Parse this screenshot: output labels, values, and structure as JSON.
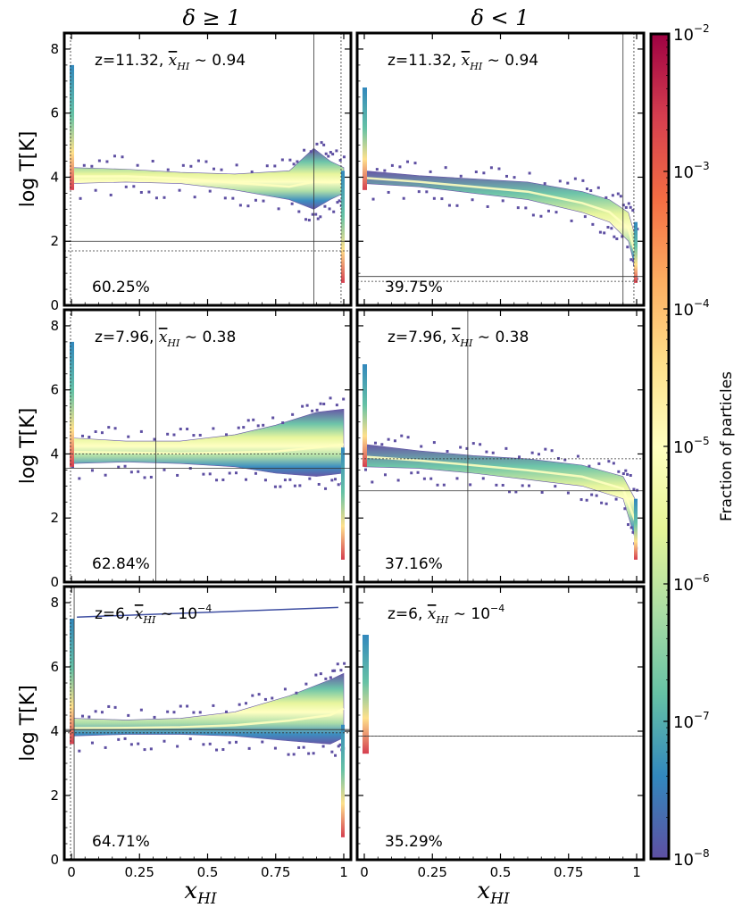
{
  "chart_data": {
    "type": "heatmap",
    "column_titles": [
      "δ ≥ 1",
      "δ < 1"
    ],
    "xlabel": "x_HI",
    "x_subscript": "HI",
    "ylabel": "log T[K]",
    "xlim": [
      0,
      1
    ],
    "ylim": [
      0,
      8.5
    ],
    "x_ticks": [
      0,
      0.25,
      0.5,
      0.75,
      1
    ],
    "x_tick_labels": [
      "0",
      "0.25",
      "0.5",
      "0.75",
      "1"
    ],
    "y_ticks": [
      0,
      2,
      4,
      6,
      8
    ],
    "y_tick_labels": [
      "0",
      "2",
      "4",
      "6",
      "8"
    ],
    "colorbar": {
      "label": "Fraction of particles",
      "scale": "log",
      "min_exp": -8,
      "max_exp": -2,
      "tick_exps": [
        -8,
        -7,
        -6,
        -5,
        -4,
        -3,
        -2
      ],
      "base": "10",
      "colormap": "Spectral_r",
      "colors": [
        "#5e4fa2",
        "#3288bd",
        "#66c2a5",
        "#abdda4",
        "#e6f598",
        "#ffffbf",
        "#fee08b",
        "#fdae61",
        "#f46d43",
        "#d53e4f",
        "#9e0142"
      ]
    },
    "panels": [
      {
        "redshift": "z=11.32",
        "xhi_mean": "0.94",
        "xhi_power": "",
        "percent": "60.25%",
        "vline": 0.89,
        "vline_dotted": 0.99,
        "hline": 2.0,
        "hline_dotted": 1.7,
        "regime": "dense",
        "band": [
          [
            0.0,
            4.3,
            3.8
          ],
          [
            0.2,
            4.25,
            3.85
          ],
          [
            0.4,
            4.15,
            3.8
          ],
          [
            0.6,
            4.1,
            3.6
          ],
          [
            0.8,
            4.2,
            3.3
          ],
          [
            0.89,
            4.9,
            3.0
          ],
          [
            0.95,
            4.5,
            3.3
          ],
          [
            1.0,
            4.3,
            3.5
          ]
        ]
      },
      {
        "redshift": "z=11.32",
        "xhi_mean": "0.94",
        "xhi_power": "",
        "percent": "39.75%",
        "vline": 0.95,
        "vline_dotted": 0.99,
        "hline": 0.9,
        "hline_dotted": 0.75,
        "regime": "underdense",
        "band": [
          [
            0.0,
            4.2,
            3.8
          ],
          [
            0.2,
            4.05,
            3.7
          ],
          [
            0.4,
            3.95,
            3.5
          ],
          [
            0.6,
            3.85,
            3.3
          ],
          [
            0.8,
            3.55,
            2.9
          ],
          [
            0.9,
            3.3,
            2.6
          ],
          [
            0.97,
            2.9,
            2.0
          ],
          [
            1.0,
            2.0,
            1.0
          ]
        ]
      },
      {
        "redshift": "z=7.96",
        "xhi_mean": "0.38",
        "xhi_power": "",
        "percent": "62.84%",
        "vline": 0.31,
        "vline_dotted": 0.0,
        "hline": 3.55,
        "hline_dotted": 4.0,
        "regime": "dense",
        "band": [
          [
            0.0,
            4.5,
            3.7
          ],
          [
            0.2,
            4.4,
            3.75
          ],
          [
            0.4,
            4.4,
            3.7
          ],
          [
            0.6,
            4.6,
            3.6
          ],
          [
            0.75,
            4.9,
            3.4
          ],
          [
            0.9,
            5.3,
            3.3
          ],
          [
            1.0,
            5.4,
            3.4
          ]
        ]
      },
      {
        "redshift": "z=7.96",
        "xhi_mean": "0.38",
        "xhi_power": "",
        "percent": "37.16%",
        "vline": 0.38,
        "vline_dotted": 0.0,
        "hline": 2.85,
        "hline_dotted": 3.85,
        "regime": "underdense",
        "band": [
          [
            0.0,
            4.3,
            3.6
          ],
          [
            0.2,
            4.1,
            3.55
          ],
          [
            0.4,
            3.95,
            3.4
          ],
          [
            0.6,
            3.85,
            3.2
          ],
          [
            0.8,
            3.65,
            3.0
          ],
          [
            0.95,
            3.3,
            2.6
          ],
          [
            1.0,
            2.5,
            1.2
          ]
        ]
      },
      {
        "redshift": "z=6",
        "xhi_mean": "10",
        "xhi_power": "−4",
        "percent": "64.71%",
        "vline": 0.01,
        "vline_dotted": 0.0,
        "hline": 4.05,
        "hline_dotted": 3.95,
        "regime": "dense",
        "band": [
          [
            0.0,
            4.4,
            3.85
          ],
          [
            0.2,
            4.35,
            3.9
          ],
          [
            0.4,
            4.4,
            3.9
          ],
          [
            0.6,
            4.6,
            3.85
          ],
          [
            0.8,
            5.1,
            3.7
          ],
          [
            0.95,
            5.6,
            3.6
          ],
          [
            1.0,
            5.8,
            3.8
          ]
        ]
      },
      {
        "redshift": "z=6",
        "xhi_mean": "10",
        "xhi_power": "−4",
        "percent": "35.29%",
        "vline": 0.0,
        "vline_dotted": 0.0,
        "hline": 3.85,
        "hline_dotted": 3.85,
        "regime": "empty",
        "band": []
      }
    ]
  }
}
